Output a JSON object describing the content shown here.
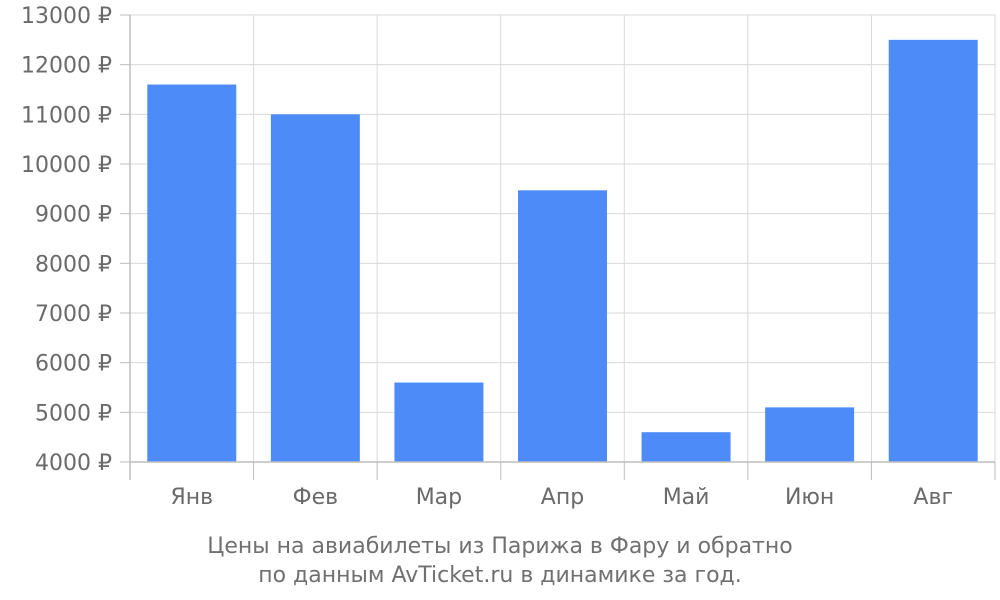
{
  "chart_data": {
    "type": "bar",
    "categories": [
      "Янв",
      "Фев",
      "Мар",
      "Апр",
      "Май",
      "Июн",
      "Авг"
    ],
    "values": [
      11600,
      11000,
      5600,
      9470,
      4600,
      5100,
      12500
    ],
    "ylim": [
      4000,
      13000
    ],
    "yticks": [
      4000,
      5000,
      6000,
      7000,
      8000,
      9000,
      10000,
      11000,
      12000,
      13000
    ],
    "ytick_suffix": " ₽",
    "grid": true,
    "colors": {
      "bar": "#4d8bf9",
      "grid": "#d9d9d9",
      "axis": "#bdbdbd"
    },
    "caption": {
      "line1": "Цены на авиабилеты из Парижа в Фару и обратно",
      "line2": "по данным AvTicket.ru в динамике за год."
    }
  }
}
